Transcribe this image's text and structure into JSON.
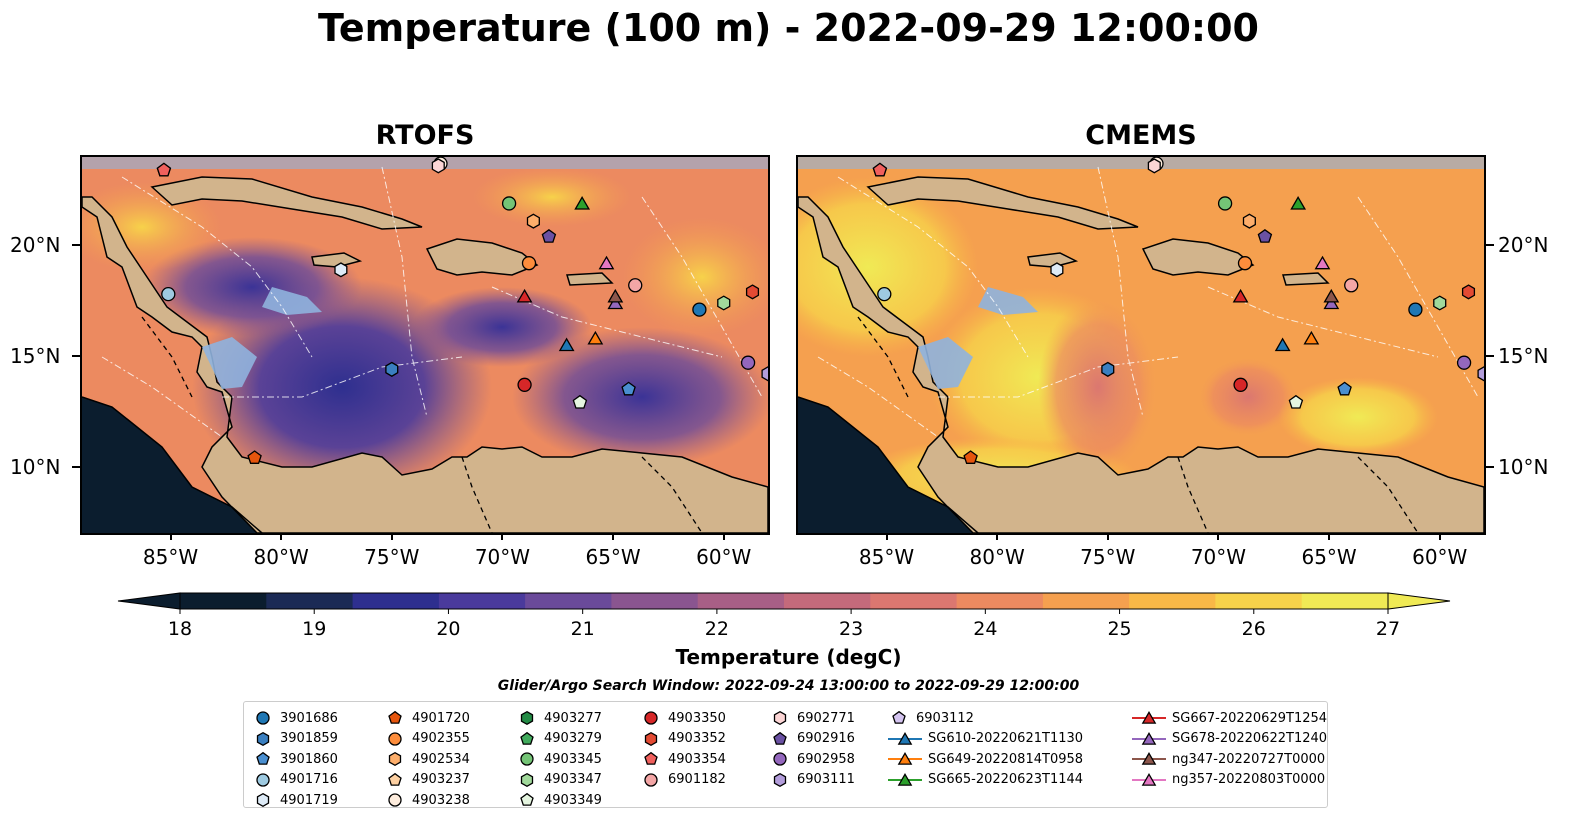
{
  "title": "Temperature (100 m) - 2022-09-29 12:00:00",
  "panels": [
    {
      "title": "RTOFS",
      "variant": "rtofs"
    },
    {
      "title": "CMEMS",
      "variant": "cmems"
    }
  ],
  "axes": {
    "lon_ticks": [
      "85°W",
      "80°W",
      "75°W",
      "70°W",
      "65°W",
      "60°W"
    ],
    "lat_ticks": [
      "20°N",
      "15°N",
      "10°N"
    ],
    "lon_range": [
      -89,
      -58
    ],
    "lat_range": [
      7,
      24
    ]
  },
  "colorbar": {
    "label": "Temperature (degC)",
    "ticks": [
      "18",
      "19",
      "20",
      "21",
      "22",
      "23",
      "24",
      "25",
      "26",
      "27"
    ],
    "range": [
      18,
      27
    ],
    "colors": [
      "#0b1d2e",
      "#1b2a55",
      "#2e2f8f",
      "#4a3a9c",
      "#6a4a9a",
      "#8a5590",
      "#a85f86",
      "#c46a7b",
      "#db7770",
      "#ec8a60",
      "#f5a04f",
      "#f9b847",
      "#f7d24a",
      "#f0ea55"
    ]
  },
  "window_text": "Glider/Argo Search Window: 2022-09-24 13:00:00 to 2022-09-29 12:00:00",
  "legend": {
    "columns": [
      [
        {
          "label": "3901686",
          "marker": "circle",
          "color": "#1f77b4"
        },
        {
          "label": "3901859",
          "marker": "hexagon",
          "color": "#3a7fc0"
        },
        {
          "label": "3901860",
          "marker": "pentagon",
          "color": "#4a8fd0"
        },
        {
          "label": "4901716",
          "marker": "circle",
          "color": "#9ecae1"
        },
        {
          "label": "4901719",
          "marker": "hexagon",
          "color": "#deebf7"
        }
      ],
      [
        {
          "label": "4901720",
          "marker": "pentagon",
          "color": "#e6550d"
        },
        {
          "label": "4902355",
          "marker": "circle",
          "color": "#fd8d3c"
        },
        {
          "label": "4902534",
          "marker": "hexagon",
          "color": "#fdae6b"
        },
        {
          "label": "4903237",
          "marker": "pentagon",
          "color": "#fdd0a2"
        },
        {
          "label": "4903238",
          "marker": "circle",
          "color": "#feedde"
        }
      ],
      [
        {
          "label": "4903277",
          "marker": "hexagon",
          "color": "#238b45"
        },
        {
          "label": "4903279",
          "marker": "pentagon",
          "color": "#41ab5d"
        },
        {
          "label": "4903345",
          "marker": "circle",
          "color": "#74c476"
        },
        {
          "label": "4903347",
          "marker": "hexagon",
          "color": "#a1d99b"
        },
        {
          "label": "4903349",
          "marker": "pentagon",
          "color": "#e5f5e0"
        }
      ],
      [
        {
          "label": "4903350",
          "marker": "circle",
          "color": "#d62728"
        },
        {
          "label": "4903352",
          "marker": "hexagon",
          "color": "#e34a33"
        },
        {
          "label": "4903354",
          "marker": "pentagon",
          "color": "#f0605d"
        },
        {
          "label": "6901182",
          "marker": "circle",
          "color": "#f4a6a6"
        }
      ],
      [
        {
          "label": "6902771",
          "marker": "hexagon",
          "color": "#fcd5d5"
        },
        {
          "label": "6902916",
          "marker": "pentagon",
          "color": "#6a51a3"
        },
        {
          "label": "6902958",
          "marker": "circle",
          "color": "#9467bd"
        },
        {
          "label": "6903111",
          "marker": "hexagon",
          "color": "#b39ddb"
        }
      ],
      [
        {
          "label": "6903112",
          "marker": "pentagon",
          "color": "#d4c4f0"
        },
        {
          "label": "SG610-20220621T1130",
          "marker": "triangle",
          "color": "#1f77b4"
        },
        {
          "label": "SG649-20220814T0958",
          "marker": "triangle",
          "color": "#ff7f0e"
        },
        {
          "label": "SG665-20220623T1144",
          "marker": "triangle",
          "color": "#2ca02c"
        }
      ],
      [
        {
          "label": "SG667-20220629T1254",
          "marker": "triangle",
          "color": "#d62728"
        },
        {
          "label": "SG678-20220622T1240",
          "marker": "triangle",
          "color": "#9467bd"
        },
        {
          "label": "ng347-20220727T0000",
          "marker": "triangle",
          "color": "#8c564b"
        },
        {
          "label": "ng357-20220803T0000",
          "marker": "triangle",
          "color": "#e377c2"
        }
      ]
    ]
  },
  "stations": [
    {
      "id": "3901686",
      "lon": -61.1,
      "lat": 17.1
    },
    {
      "id": "3901859",
      "lon": -75.0,
      "lat": 14.4
    },
    {
      "id": "3901860",
      "lon": -64.3,
      "lat": 13.5
    },
    {
      "id": "4901716",
      "lon": -85.1,
      "lat": 17.8
    },
    {
      "id": "4901719",
      "lon": -77.3,
      "lat": 18.9
    },
    {
      "id": "4901720",
      "lon": -81.2,
      "lat": 10.4
    },
    {
      "id": "4902355",
      "lon": -68.8,
      "lat": 19.2
    },
    {
      "id": "4902534",
      "lon": -68.6,
      "lat": 21.1
    },
    {
      "id": "4903237",
      "lon": -85.3,
      "lat": 23.4
    },
    {
      "id": "4903238",
      "lon": -72.8,
      "lat": 23.7
    },
    {
      "id": "4903345",
      "lon": -69.7,
      "lat": 21.9
    },
    {
      "id": "4903347",
      "lon": -60.0,
      "lat": 17.4
    },
    {
      "id": "4903349",
      "lon": -66.5,
      "lat": 12.9
    },
    {
      "id": "4903350",
      "lon": -69.0,
      "lat": 13.7
    },
    {
      "id": "4903352",
      "lon": -58.7,
      "lat": 17.9
    },
    {
      "id": "4903354",
      "lon": -85.3,
      "lat": 23.4
    },
    {
      "id": "6901182",
      "lon": -64.0,
      "lat": 18.2
    },
    {
      "id": "6902771",
      "lon": -72.9,
      "lat": 23.6
    },
    {
      "id": "6902916",
      "lon": -67.9,
      "lat": 20.4
    },
    {
      "id": "6902958",
      "lon": -58.9,
      "lat": 14.7
    },
    {
      "id": "6903111",
      "lon": -58.0,
      "lat": 14.2
    },
    {
      "id": "SG610-20220621T1130",
      "lon": -67.1,
      "lat": 15.5
    },
    {
      "id": "SG649-20220814T0958",
      "lon": -65.8,
      "lat": 15.8
    },
    {
      "id": "SG665-20220623T1144",
      "lon": -66.4,
      "lat": 21.9
    },
    {
      "id": "SG667-20220629T1254",
      "lon": -69.0,
      "lat": 17.7
    },
    {
      "id": "SG678-20220622T1240",
      "lon": -64.9,
      "lat": 17.4
    },
    {
      "id": "ng347-20220727T0000",
      "lon": -64.9,
      "lat": 17.7
    },
    {
      "id": "ng357-20220803T0000",
      "lon": -65.3,
      "lat": 19.2
    }
  ]
}
